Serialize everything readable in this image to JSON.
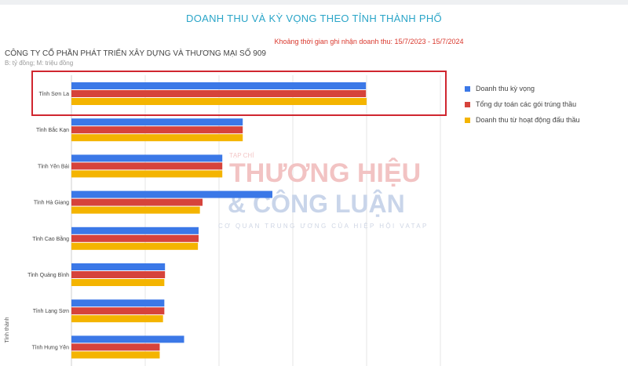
{
  "header": {
    "title": "DOANH THU VÀ KỲ VỌNG THEO TỈNH THÀNH PHỐ",
    "subtitle": "Khoảng thời gian ghi nhận doanh thu: 15/7/2023 - 15/7/2024",
    "company": "CÔNG TY CỔ PHẦN PHÁT TRIỂN XÂY DỰNG VÀ THƯƠNG MẠI SỐ 909",
    "units": "B: tỷ đồng; M: triệu đồng"
  },
  "watermark": {
    "line1": "THƯƠNG HIỆU",
    "line2": "& CÔNG LUẬN",
    "line3": "CƠ QUAN TRUNG ƯƠNG CỦA HIỆP HỘI VATAP",
    "small": "TẠP CHÍ"
  },
  "colors": {
    "series1": "#3b78e7",
    "series2": "#d6433b",
    "series3": "#f4b400",
    "highlight": "#d0262f",
    "grid": "#e4e4e4"
  },
  "chart_data": {
    "type": "bar",
    "orientation": "horizontal",
    "ylabel": "Tỉnh thành",
    "categories": [
      "Tỉnh Sơn La",
      "Tỉnh Bắc Kạn",
      "Tỉnh Yên Bái",
      "Tỉnh Hà Giang",
      "Tỉnh Cao Bằng",
      "Tỉnh Quảng Bình",
      "Tỉnh Lạng Sơn",
      "Tỉnh Hưng Yên"
    ],
    "series": [
      {
        "name": "Doanh thu kỳ vọng",
        "color": "#3b78e7",
        "values": [
          447,
          260,
          229,
          305,
          193,
          142,
          141,
          171
        ]
      },
      {
        "name": "Tổng dự toán các gói trúng thầu",
        "color": "#d6433b",
        "values": [
          447,
          260,
          229,
          199,
          193,
          142,
          141,
          134
        ]
      },
      {
        "name": "Doanh thu từ hoạt động đấu thầu",
        "color": "#f4b400",
        "values": [
          448,
          260,
          229,
          195,
          192,
          141,
          139,
          134
        ]
      }
    ],
    "xlim": [
      0,
      560
    ],
    "grid": true,
    "legend_position": "right",
    "highlighted_category": "Tỉnh Sơn La"
  }
}
